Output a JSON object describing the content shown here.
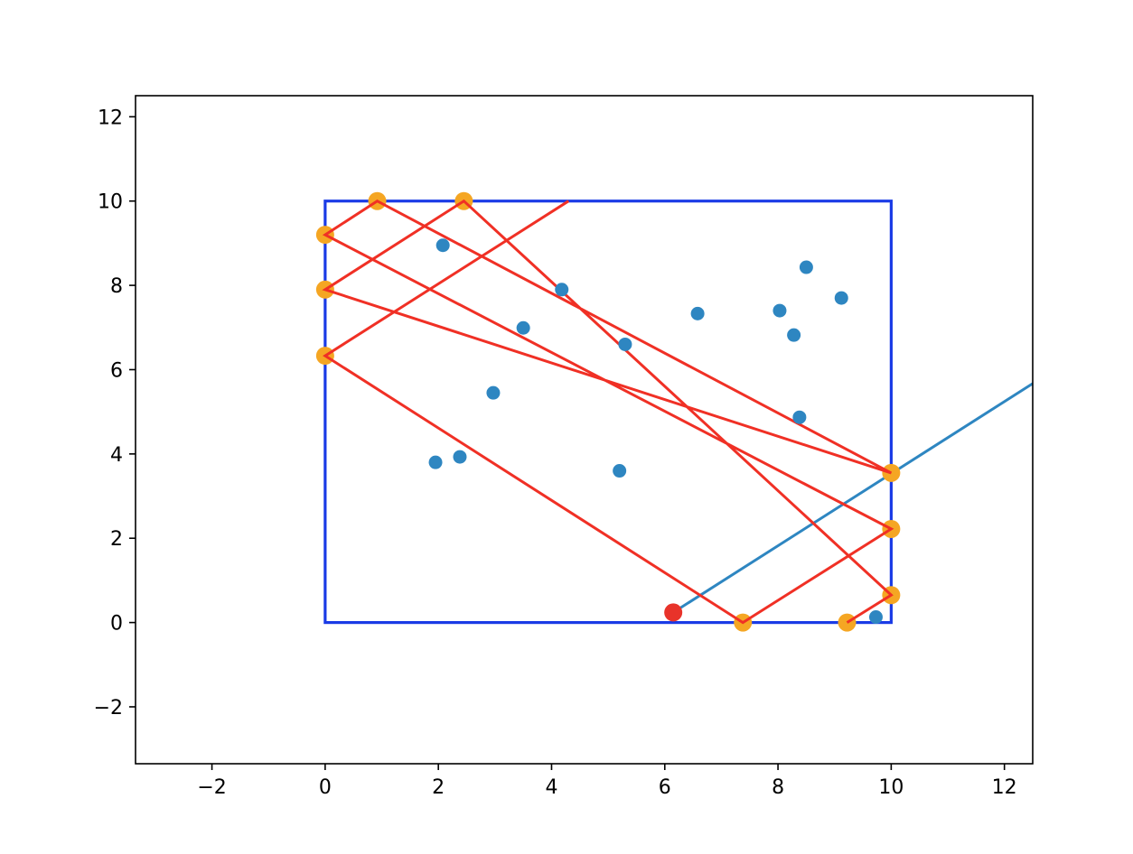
{
  "chart_data": {
    "type": "scatter",
    "title": "",
    "xlabel": "",
    "ylabel": "",
    "xlim": [
      -3.35,
      12.5
    ],
    "ylim": [
      -3.35,
      12.5
    ],
    "xticks": [
      -2,
      0,
      2,
      4,
      6,
      8,
      10,
      12
    ],
    "yticks": [
      -2,
      0,
      2,
      4,
      6,
      8,
      10,
      12
    ],
    "xtick_labels": [
      "−2",
      "0",
      "2",
      "4",
      "6",
      "8",
      "10",
      "12"
    ],
    "ytick_labels": [
      "−2",
      "0",
      "2",
      "4",
      "6",
      "8",
      "10",
      "12"
    ],
    "grid": false,
    "legend": false,
    "colors": {
      "box": "#1a3be6",
      "reflection_path": "#f03025",
      "bounce_points": "#f5a623",
      "scatter_points": "#2e86c1",
      "start_point": "#e8332a",
      "ray": "#2e86c1"
    },
    "box": {
      "x": [
        0,
        10
      ],
      "y": [
        0,
        10
      ]
    },
    "scatter_points": [
      [
        2.08,
        8.95
      ],
      [
        4.18,
        7.9
      ],
      [
        3.5,
        6.99
      ],
      [
        5.3,
        6.6
      ],
      [
        6.58,
        7.33
      ],
      [
        8.03,
        7.4
      ],
      [
        8.5,
        8.43
      ],
      [
        9.12,
        7.7
      ],
      [
        8.28,
        6.82
      ],
      [
        8.38,
        4.87
      ],
      [
        2.97,
        5.45
      ],
      [
        1.95,
        3.8
      ],
      [
        2.38,
        3.93
      ],
      [
        5.2,
        3.6
      ],
      [
        9.73,
        0.13
      ]
    ],
    "start_point": [
      6.15,
      0.24
    ],
    "ray": [
      [
        6.15,
        0.24
      ],
      [
        12.5,
        5.67
      ]
    ],
    "reflection_path": [
      [
        4.3,
        10.0
      ],
      [
        0.0,
        6.33
      ],
      [
        7.38,
        0.0
      ],
      [
        10.0,
        2.22
      ],
      [
        0.0,
        9.2
      ],
      [
        0.92,
        10.0
      ],
      [
        10.0,
        3.55
      ],
      [
        0.0,
        7.9
      ],
      [
        2.45,
        10.0
      ],
      [
        10.0,
        0.65
      ],
      [
        9.22,
        0.0
      ]
    ],
    "bounce_points": [
      [
        0.0,
        6.33
      ],
      [
        7.38,
        0.0
      ],
      [
        10.0,
        2.22
      ],
      [
        0.0,
        9.2
      ],
      [
        0.92,
        10.0
      ],
      [
        10.0,
        3.55
      ],
      [
        0.0,
        7.9
      ],
      [
        2.45,
        10.0
      ],
      [
        10.0,
        0.65
      ],
      [
        9.22,
        0.0
      ]
    ]
  }
}
